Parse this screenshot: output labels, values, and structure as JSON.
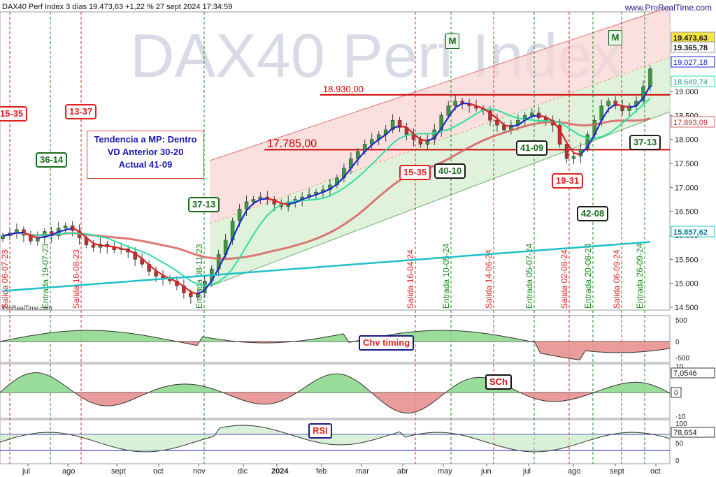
{
  "header": {
    "title": "DAX40 Perf Index 3 días 19.473,63 +1,22 % 27 sept 2024 17:34:59",
    "site": "www.ProRealTime.com",
    "watermark": "DAX40 Perf Index",
    "credit": "ProRealTime.com"
  },
  "trend_box": {
    "line1": "Tendencia a MP: Dentro",
    "line2": "VD Anterior 30-20",
    "line3": "Actual 41-09"
  },
  "price_tags": [
    {
      "text": "19.473,63",
      "style": "yellow"
    },
    {
      "text": "19.365,78",
      "style": "white"
    },
    {
      "text": "19.027,18",
      "style": "blue"
    },
    {
      "text": "18.649,74",
      "style": "teal"
    },
    {
      "text": "17.893,09",
      "style": "red"
    },
    {
      "text": "15.857,62",
      "style": "cyan"
    }
  ],
  "levels": [
    {
      "label": "18.930,00",
      "value": 18930
    },
    {
      "label": "17.785,00",
      "value": 17785
    }
  ],
  "badges": [
    {
      "text": "15-35",
      "style": "red"
    },
    {
      "text": "13-37",
      "style": "red"
    },
    {
      "text": "36-14",
      "style": "green"
    },
    {
      "text": "37-13",
      "style": "green"
    },
    {
      "text": "15-35",
      "style": "red"
    },
    {
      "text": "40-10",
      "style": "dark"
    },
    {
      "text": "41-09",
      "style": "dark"
    },
    {
      "text": "19-31",
      "style": "red"
    },
    {
      "text": "42-08",
      "style": "dark"
    },
    {
      "text": "37-13",
      "style": "dark"
    }
  ],
  "m_markers": [
    "M",
    "M"
  ],
  "signals": [
    {
      "text": "Salida 06-07-23",
      "type": "salida"
    },
    {
      "text": "Entrada 19-07-23",
      "type": "entrada"
    },
    {
      "text": "Salida 16-08-23",
      "type": "salida"
    },
    {
      "text": "Entrada 08-11-23",
      "type": "entrada"
    },
    {
      "text": "Salida 16-04-24",
      "type": "salida"
    },
    {
      "text": "Entrada 10-05-24",
      "type": "entrada"
    },
    {
      "text": "Salida 14-06-24",
      "type": "salida"
    },
    {
      "text": "Entrada 05-07-24",
      "type": "entrada"
    },
    {
      "text": "Salida 02-08-24",
      "type": "salida"
    },
    {
      "text": "Entrada 20-08-24",
      "type": "entrada"
    },
    {
      "text": "Salida 06-09-24",
      "type": "salida"
    },
    {
      "text": "Entrada 26-09-24",
      "type": "entrada"
    }
  ],
  "indicators": {
    "chv": {
      "label": "Chv timing",
      "ticks": [
        "500",
        "0",
        "-500"
      ]
    },
    "sch": {
      "label": "SCh",
      "ticks": [
        "10",
        "0",
        "-10"
      ],
      "value": "7,0546",
      "zero": "0"
    },
    "rsi": {
      "label": "RSI",
      "ticks": [
        "100",
        "50",
        "0"
      ],
      "value": "78,654"
    }
  },
  "chart_data": {
    "type": "candlestick",
    "title": "DAX40 Perf Index 3 días",
    "x_ticks": [
      "jul",
      "ago",
      "sept",
      "oct",
      "nov",
      "dic",
      "2024",
      "feb",
      "mar",
      "abr",
      "may",
      "jun",
      "jul",
      "ago",
      "sept",
      "oct"
    ],
    "y_ticks": [
      "19.000",
      "18.500",
      "18.000",
      "17.500",
      "17.000",
      "16.500",
      "16.000",
      "15.500",
      "15.000",
      "14.500"
    ],
    "ylim": [
      14400,
      19800
    ],
    "last": 19473.63,
    "change_pct": 1.22,
    "close_series": [
      15990,
      16050,
      16120,
      16000,
      15880,
      15950,
      16080,
      15990,
      16150,
      16200,
      16100,
      15950,
      15800,
      15750,
      15820,
      15760,
      15700,
      15720,
      15650,
      15500,
      15400,
      15250,
      15150,
      15100,
      15050,
      14950,
      14800,
      14720,
      14800,
      15050,
      15300,
      15600,
      15900,
      16300,
      16550,
      16700,
      16750,
      16800,
      16750,
      16650,
      16600,
      16700,
      16750,
      16800,
      16850,
      16900,
      16950,
      17050,
      17200,
      17400,
      17600,
      17750,
      17900,
      18000,
      18100,
      18200,
      18400,
      18250,
      18100,
      18000,
      17900,
      18000,
      18200,
      18500,
      18700,
      18800,
      18750,
      18700,
      18650,
      18600,
      18400,
      18300,
      18200,
      18300,
      18400,
      18500,
      18550,
      18450,
      18400,
      18300,
      17900,
      17600,
      17650,
      17800,
      18100,
      18400,
      18700,
      18800,
      18700,
      18600,
      18700,
      18800,
      19100,
      19473.63
    ]
  }
}
